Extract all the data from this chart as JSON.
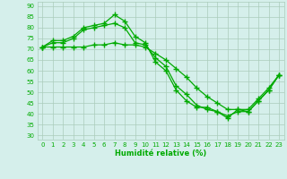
{
  "line1": [
    71,
    74,
    74,
    76,
    80,
    81,
    82,
    86,
    83,
    76,
    73,
    64,
    60,
    51,
    46,
    43,
    43,
    41,
    38,
    42,
    42,
    47,
    52,
    58
  ],
  "line2": [
    71,
    73,
    73,
    75,
    79,
    80,
    81,
    82,
    80,
    73,
    72,
    66,
    62,
    53,
    49,
    44,
    42,
    41,
    39,
    41,
    41,
    46,
    51,
    58
  ],
  "line3": [
    71,
    71,
    71,
    71,
    71,
    72,
    72,
    73,
    72,
    72,
    71,
    68,
    65,
    61,
    57,
    52,
    48,
    45,
    42,
    42,
    41,
    46,
    51,
    58
  ],
  "x": [
    0,
    1,
    2,
    3,
    4,
    5,
    6,
    7,
    8,
    9,
    10,
    11,
    12,
    13,
    14,
    15,
    16,
    17,
    18,
    19,
    20,
    21,
    22,
    23
  ],
  "xlabel": "Humidité relative (%)",
  "ylim": [
    28,
    92
  ],
  "xlim": [
    -0.5,
    23.5
  ],
  "yticks": [
    30,
    35,
    40,
    45,
    50,
    55,
    60,
    65,
    70,
    75,
    80,
    85,
    90
  ],
  "xticks": [
    0,
    1,
    2,
    3,
    4,
    5,
    6,
    7,
    8,
    9,
    10,
    11,
    12,
    13,
    14,
    15,
    16,
    17,
    18,
    19,
    20,
    21,
    22,
    23
  ],
  "line_color": "#00aa00",
  "bg_color": "#d5efeb",
  "grid_color": "#aaccbb",
  "marker": "+",
  "marker_size": 4.0,
  "linewidth": 0.9,
  "tick_fontsize": 5.0,
  "xlabel_fontsize": 6.0
}
